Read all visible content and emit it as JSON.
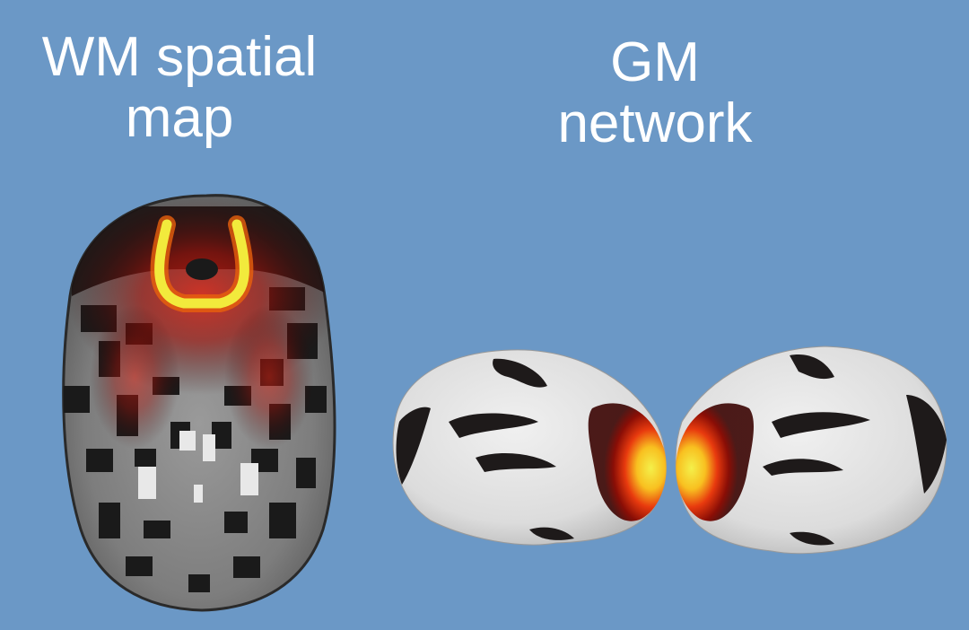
{
  "wm_panel": {
    "title_line1": "WM spatial",
    "title_line2": "map"
  },
  "gm_panel": {
    "title_line1": "GM",
    "title_line2": "network"
  },
  "colors": {
    "background": "#6b98c6",
    "title_text": "#ffffff",
    "activation_yellow": "#f2ea3c",
    "activation_red": "#d81a0c",
    "cortex_gray": "#e8e8e8"
  }
}
